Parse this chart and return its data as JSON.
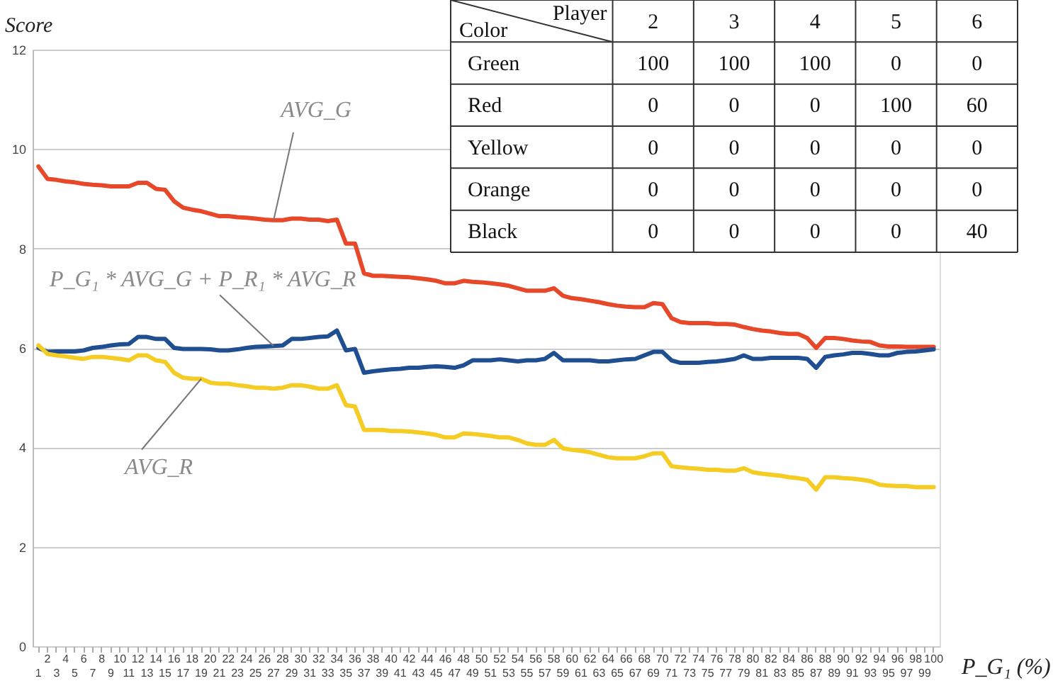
{
  "chart_data": [
    {
      "type": "line",
      "ylabel": "Score",
      "xlabel": "P_G₁ (%)",
      "categories": [
        "1",
        "2",
        "3",
        "4",
        "5",
        "6",
        "7",
        "8",
        "9",
        "10",
        "11",
        "12",
        "13",
        "14",
        "15",
        "16",
        "17",
        "18",
        "19",
        "20",
        "21",
        "22",
        "23",
        "24",
        "25",
        "26",
        "27",
        "28",
        "29",
        "30",
        "31",
        "32",
        "33",
        "34",
        "35",
        "36",
        "37",
        "38",
        "39",
        "40",
        "41",
        "42",
        "43",
        "44",
        "45",
        "46",
        "47",
        "48",
        "49",
        "50",
        "51",
        "52",
        "53",
        "54",
        "55",
        "56",
        "57",
        "58",
        "59",
        "60",
        "61",
        "62",
        "63",
        "64",
        "65",
        "66",
        "67",
        "68",
        "69",
        "70",
        "71",
        "72",
        "73",
        "74",
        "75",
        "76",
        "77",
        "78",
        "79",
        "80",
        "81",
        "82",
        "83",
        "84",
        "85",
        "86",
        "87",
        "88",
        "89",
        "90",
        "91",
        "92",
        "93",
        "94",
        "95",
        "96",
        "97",
        "98",
        "99",
        "100"
      ],
      "series": [
        {
          "color": "#e8482a",
          "values": [
            9.65,
            9.4,
            9.38,
            9.35,
            9.33,
            9.3,
            9.28,
            9.27,
            9.25,
            9.25,
            9.25,
            9.32,
            9.32,
            9.2,
            9.18,
            8.95,
            8.82,
            8.78,
            8.75,
            8.7,
            8.65,
            8.65,
            8.63,
            8.62,
            8.6,
            8.58,
            8.57,
            8.57,
            8.6,
            8.6,
            8.58,
            8.58,
            8.55,
            8.58,
            8.1,
            8.1,
            7.5,
            7.45,
            7.45,
            7.44,
            7.43,
            7.42,
            7.4,
            7.38,
            7.35,
            7.3,
            7.3,
            7.35,
            7.33,
            7.32,
            7.3,
            7.28,
            7.25,
            7.2,
            7.15,
            7.15,
            7.15,
            7.2,
            7.05,
            7.0,
            6.98,
            6.95,
            6.92,
            6.88,
            6.85,
            6.83,
            6.82,
            6.82,
            6.9,
            6.88,
            6.6,
            6.52,
            6.5,
            6.5,
            6.5,
            6.48,
            6.48,
            6.47,
            6.42,
            6.38,
            6.35,
            6.33,
            6.3,
            6.28,
            6.28,
            6.2,
            6.0,
            6.2,
            6.2,
            6.18,
            6.15,
            6.13,
            6.12,
            6.05,
            6.03,
            6.03,
            6.02,
            6.02,
            6.02,
            6.02
          ]
        },
        {
          "color": "#1f4e91",
          "values": [
            6.0,
            5.92,
            5.93,
            5.93,
            5.93,
            5.95,
            6.0,
            6.02,
            6.05,
            6.07,
            6.08,
            6.22,
            6.22,
            6.18,
            6.18,
            6.0,
            5.98,
            5.98,
            5.98,
            5.97,
            5.95,
            5.95,
            5.97,
            6.0,
            6.02,
            6.03,
            6.04,
            6.05,
            6.18,
            6.18,
            6.2,
            6.22,
            6.23,
            6.35,
            5.95,
            5.98,
            5.5,
            5.53,
            5.55,
            5.57,
            5.58,
            5.6,
            5.6,
            5.62,
            5.63,
            5.62,
            5.6,
            5.65,
            5.75,
            5.75,
            5.75,
            5.77,
            5.75,
            5.73,
            5.75,
            5.75,
            5.78,
            5.9,
            5.75,
            5.75,
            5.75,
            5.75,
            5.73,
            5.73,
            5.75,
            5.77,
            5.78,
            5.85,
            5.92,
            5.92,
            5.75,
            5.7,
            5.7,
            5.7,
            5.72,
            5.73,
            5.75,
            5.78,
            5.85,
            5.78,
            5.78,
            5.8,
            5.8,
            5.8,
            5.8,
            5.78,
            5.6,
            5.82,
            5.85,
            5.87,
            5.9,
            5.9,
            5.88,
            5.85,
            5.85,
            5.9,
            5.92,
            5.93,
            5.95,
            5.97
          ]
        },
        {
          "color": "#f5cc23",
          "values": [
            6.05,
            5.88,
            5.85,
            5.83,
            5.8,
            5.78,
            5.82,
            5.82,
            5.8,
            5.78,
            5.75,
            5.85,
            5.85,
            5.75,
            5.72,
            5.5,
            5.4,
            5.38,
            5.38,
            5.3,
            5.28,
            5.28,
            5.25,
            5.23,
            5.2,
            5.2,
            5.18,
            5.2,
            5.25,
            5.25,
            5.22,
            5.18,
            5.18,
            5.25,
            4.85,
            4.82,
            4.35,
            4.35,
            4.35,
            4.33,
            4.33,
            4.32,
            4.3,
            4.28,
            4.25,
            4.2,
            4.2,
            4.28,
            4.27,
            4.25,
            4.23,
            4.2,
            4.2,
            4.15,
            4.08,
            4.05,
            4.05,
            4.15,
            3.98,
            3.95,
            3.93,
            3.9,
            3.85,
            3.8,
            3.78,
            3.78,
            3.78,
            3.82,
            3.88,
            3.88,
            3.62,
            3.6,
            3.58,
            3.57,
            3.55,
            3.55,
            3.53,
            3.53,
            3.58,
            3.5,
            3.47,
            3.45,
            3.43,
            3.4,
            3.38,
            3.35,
            3.15,
            3.4,
            3.4,
            3.38,
            3.37,
            3.35,
            3.32,
            3.25,
            3.23,
            3.22,
            3.22,
            3.2,
            3.2,
            3.2
          ]
        }
      ],
      "ylim": [
        0,
        12
      ],
      "yticks": [
        0,
        2,
        4,
        6,
        8,
        10,
        12
      ],
      "grid": "y",
      "legend": false,
      "annotations": [
        {
          "text": "AVG_G",
          "x": "27",
          "y": 8.57
        },
        {
          "text": "P_G₁ * AVG_G + P_R₁ * AVG_R",
          "x": "27",
          "y": 6.04
        },
        {
          "text": "AVG_R",
          "x": "19",
          "y": 5.38
        }
      ]
    },
    {
      "type": "heatmap",
      "xlabel": "Player",
      "ylabel": "Color",
      "data_labels": true,
      "categories": [
        "2",
        "3",
        "4",
        "5",
        "6"
      ],
      "y_categories": [
        "Green",
        "Red",
        "Yellow",
        "Orange",
        "Black"
      ],
      "cells": [
        [
          100,
          100,
          100,
          0,
          0
        ],
        [
          0,
          0,
          0,
          100,
          60
        ],
        [
          0,
          0,
          0,
          0,
          0
        ],
        [
          0,
          0,
          0,
          0,
          0
        ],
        [
          0,
          0,
          0,
          0,
          40
        ]
      ]
    }
  ]
}
